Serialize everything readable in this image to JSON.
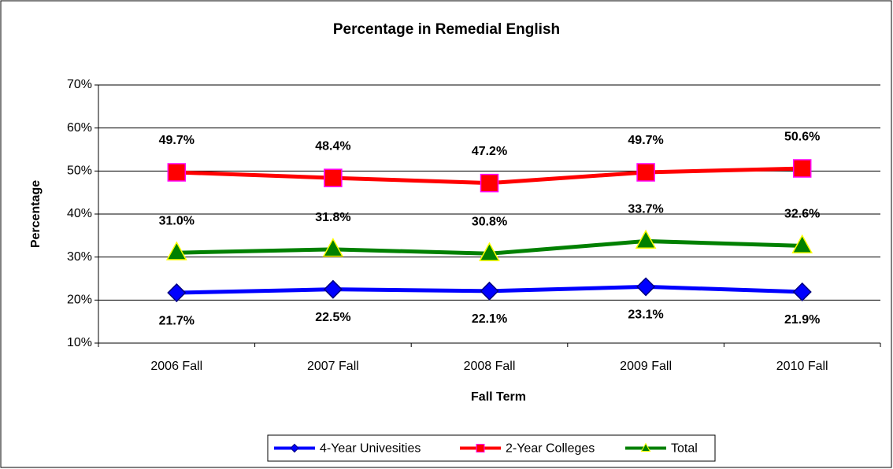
{
  "chart_data": {
    "type": "line",
    "title": "Percentage in Remedial English",
    "x_label": "Fall Term",
    "y_label": "Percentage",
    "categories": [
      "2006 Fall",
      "2007 Fall",
      "2008 Fall",
      "2009 Fall",
      "2010 Fall"
    ],
    "series": [
      {
        "name": "4-Year Univesities",
        "color": "#0000ff",
        "marker": "diamond",
        "marker_color": "#0000ff",
        "marker_edge": "#000080",
        "values": [
          21.7,
          22.5,
          22.1,
          23.1,
          21.9
        ],
        "value_labels": [
          "21.7%",
          "22.5%",
          "22.1%",
          "23.1%",
          "21.9%"
        ],
        "label_position": "below"
      },
      {
        "name": "2-Year Colleges",
        "color": "#ff0000",
        "marker": "square",
        "marker_color": "#ff0000",
        "marker_edge": "#ff00ff",
        "values": [
          49.7,
          48.4,
          47.2,
          49.7,
          50.6
        ],
        "value_labels": [
          "49.7%",
          "48.4%",
          "47.2%",
          "49.7%",
          "50.6%"
        ],
        "label_position": "above"
      },
      {
        "name": "Total",
        "color": "#008000",
        "marker": "triangle",
        "marker_color": "#008000",
        "marker_edge": "#ffff00",
        "values": [
          31.0,
          31.8,
          30.8,
          33.7,
          32.6
        ],
        "value_labels": [
          "31.0%",
          "31.8%",
          "30.8%",
          "33.7%",
          "32.6%"
        ],
        "label_position": "above"
      }
    ],
    "ylim": [
      10,
      70
    ],
    "yticks": [
      {
        "value": 10,
        "label": "10%"
      },
      {
        "value": 20,
        "label": "20%"
      },
      {
        "value": 30,
        "label": "30%"
      },
      {
        "value": 40,
        "label": "40%"
      },
      {
        "value": 50,
        "label": "50%"
      },
      {
        "value": 60,
        "label": "60%"
      },
      {
        "value": 70,
        "label": "70%"
      }
    ],
    "grid": true,
    "legend": "bottom"
  }
}
